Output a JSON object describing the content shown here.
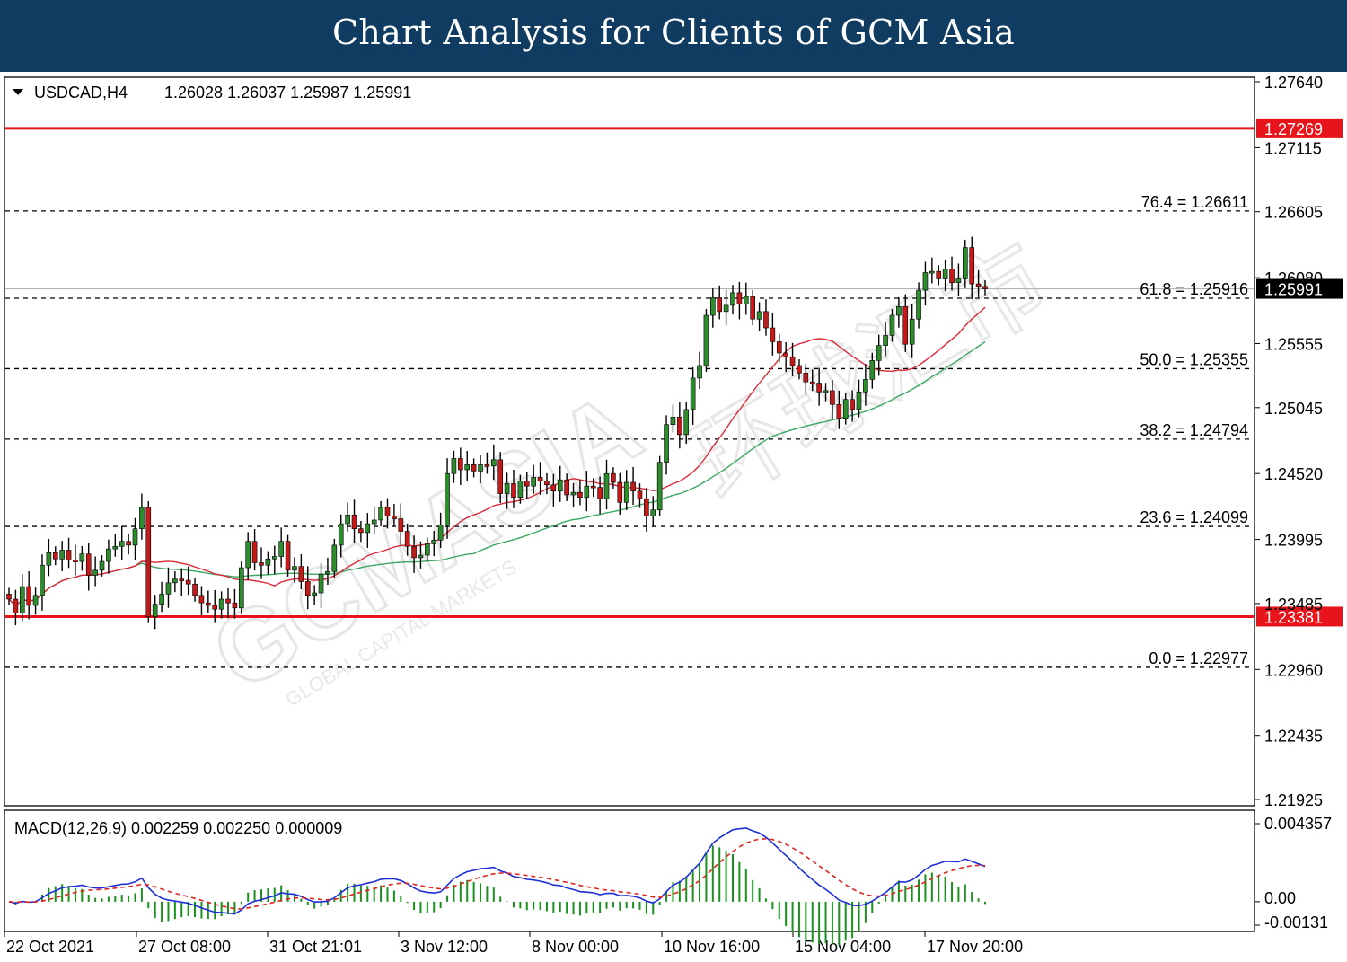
{
  "banner": {
    "title": "Chart Analysis for Clients of GCM Asia"
  },
  "header": {
    "symbol": "USDCAD,H4",
    "ohlc": "1.26028 1.26037 1.25987 1.25991"
  },
  "watermark": {
    "brand": "GCMASIA",
    "sub": "GLOBAL CAPITAL MARKETS",
    "chinese": "环球汇市"
  },
  "price_axis": {
    "ticks": [
      "1.27640",
      "1.27115",
      "1.26605",
      "1.26080",
      "1.25555",
      "1.25045",
      "1.24520",
      "1.23995",
      "1.23485",
      "1.22960",
      "1.22435",
      "1.21925"
    ],
    "current_price": "1.25991",
    "resistance_label": "1.27269",
    "support_label": "1.23381"
  },
  "time_axis": {
    "labels": [
      "22 Oct 2021",
      "27 Oct 08:00",
      "31 Oct 21:01",
      "3 Nov 12:00",
      "8 Nov 00:00",
      "10 Nov 16:00",
      "15 Nov 04:00",
      "17 Nov 20:00"
    ]
  },
  "macd": {
    "header": "MACD(12,26,9) 0.002259 0.002250 0.000009",
    "ticks": [
      "0.004357",
      "0.00",
      "-0.00131"
    ]
  },
  "chart_data": {
    "type": "candlestick",
    "symbol": "USDCAD",
    "timeframe": "H4",
    "ylim": [
      1.21925,
      1.2764
    ],
    "colors": {
      "bull": "#2e8b2e",
      "bear": "#c41a1a",
      "wick": "#000000",
      "ma_fast": "#d92a3a",
      "ma_slow": "#3ca864",
      "macd_line": "#1f2fd6",
      "signal_line": "#e0231e",
      "histogram": "#19911d",
      "level": "#e8141b"
    },
    "levels": [
      {
        "label": "1.27269",
        "value": 1.27269,
        "style": "solid-red"
      },
      {
        "label": "1.23381",
        "value": 1.23381,
        "style": "solid-red"
      }
    ],
    "fibonacci": [
      {
        "label": "76.4 = 1.26611",
        "value": 1.26611
      },
      {
        "label": "61.8 = 1.25916",
        "value": 1.25916
      },
      {
        "label": "50.0 = 1.25355",
        "value": 1.25355
      },
      {
        "label": "38.2 = 1.24794",
        "value": 1.24794
      },
      {
        "label": "23.6 = 1.24099",
        "value": 1.24099
      },
      {
        "label": "0.0 = 1.22977",
        "value": 1.22977
      }
    ],
    "close": [
      1.2352,
      1.2341,
      1.2362,
      1.2347,
      1.2355,
      1.2379,
      1.2389,
      1.2384,
      1.2391,
      1.2383,
      1.2382,
      1.2388,
      1.2371,
      1.2375,
      1.2382,
      1.2392,
      1.2394,
      1.2398,
      1.2395,
      1.2408,
      1.2425,
      1.2338,
      1.2348,
      1.2356,
      1.2365,
      1.2368,
      1.2367,
      1.2364,
      1.2355,
      1.2349,
      1.2347,
      1.2344,
      1.2352,
      1.2349,
      1.2345,
      1.2377,
      1.2398,
      1.2381,
      1.2379,
      1.2384,
      1.2386,
      1.2398,
      1.2375,
      1.2378,
      1.2366,
      1.2355,
      1.2357,
      1.2372,
      1.2374,
      1.2395,
      1.2412,
      1.2419,
      1.2408,
      1.2405,
      1.2412,
      1.2415,
      1.2425,
      1.2418,
      1.2416,
      1.2406,
      1.2394,
      1.2385,
      1.2387,
      1.2396,
      1.2399,
      1.2411,
      1.2452,
      1.2464,
      1.2455,
      1.2459,
      1.2454,
      1.2459,
      1.2458,
      1.2463,
      1.2436,
      1.2444,
      1.2433,
      1.2446,
      1.2442,
      1.2449,
      1.2446,
      1.2443,
      1.2438,
      1.2447,
      1.2435,
      1.2437,
      1.2433,
      1.2442,
      1.2441,
      1.2432,
      1.2452,
      1.2445,
      1.2429,
      1.2445,
      1.2438,
      1.2432,
      1.2418,
      1.2423,
      1.2461,
      1.2491,
      1.2497,
      1.2483,
      1.2503,
      1.2528,
      1.2538,
      1.2578,
      1.2592,
      1.2581,
      1.2586,
      1.2596,
      1.2587,
      1.2593,
      1.2575,
      1.2581,
      1.2568,
      1.2557,
      1.2548,
      1.2545,
      1.2538,
      1.2532,
      1.2525,
      1.2524,
      1.2517,
      1.2518,
      1.2507,
      1.2496,
      1.2511,
      1.2503,
      1.2517,
      1.2527,
      1.2542,
      1.2554,
      1.2562,
      1.2578,
      1.2585,
      1.2555,
      1.2575,
      1.2598,
      1.2612,
      1.2613,
      1.2607,
      1.2615,
      1.2604,
      1.2607,
      1.2632,
      1.2603,
      1.2601,
      1.2599
    ]
  }
}
